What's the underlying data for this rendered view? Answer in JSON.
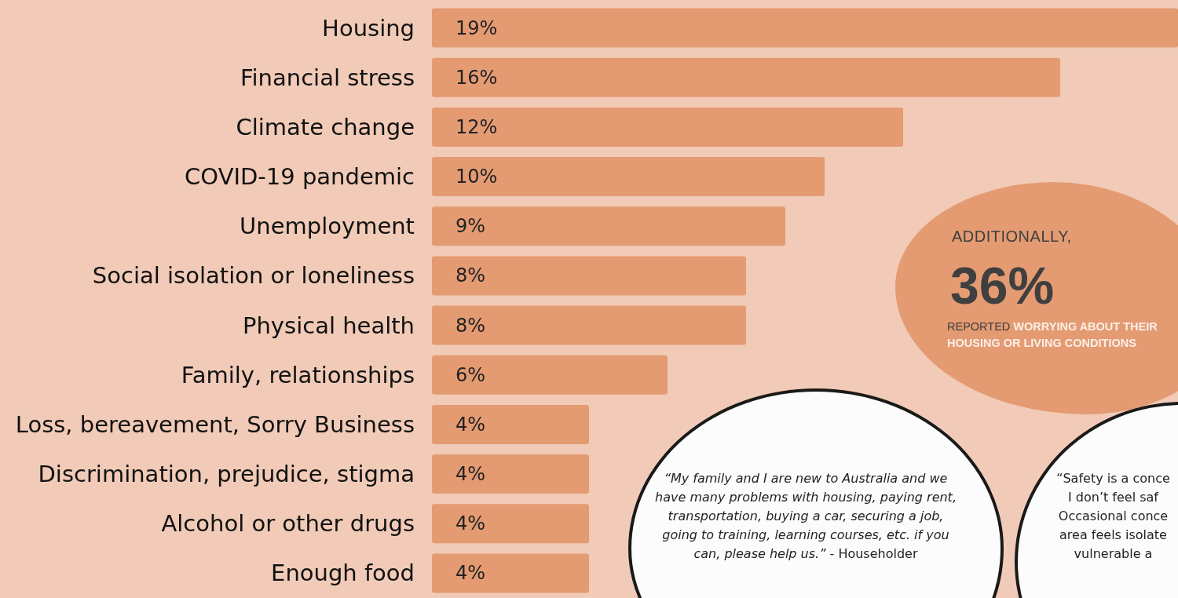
{
  "chart_data": {
    "type": "bar",
    "orientation": "horizontal",
    "categories": [
      "Housing",
      "Financial stress",
      "Climate change",
      "COVID-19 pandemic",
      "Unemployment",
      "Social isolation or loneliness",
      "Physical health",
      "Family, relationships",
      "Loss, bereavement, Sorry Business",
      "Discrimination, prejudice, stigma",
      "Alcohol or other drugs",
      "Enough food"
    ],
    "values": [
      19,
      16,
      12,
      10,
      9,
      8,
      8,
      6,
      4,
      4,
      4,
      4
    ],
    "value_labels": [
      "19%",
      "16%",
      "12%",
      "10%",
      "9%",
      "8%",
      "8%",
      "6%",
      "4%",
      "4%",
      "4%",
      "4%"
    ],
    "color": "#e49b72",
    "xlim": [
      0,
      19
    ],
    "grid": false,
    "annotations": [
      "ADDITIONALLY,",
      "36%",
      "REPORTED",
      "WORRYING ABOUT THEIR HOUSING OR LIVING CONDITIONS",
      "“My family and I are new to Australia and we have many problems with housing, paying rent, transportation, buying a car, securing a job, going to training, learning courses, etc. if you can, please help us.”",
      "- Householder",
      "“Safety is a conce\nI don’t feel saf\nOccasional conce\narea feels isolate\nvulnerable a"
    ]
  }
}
